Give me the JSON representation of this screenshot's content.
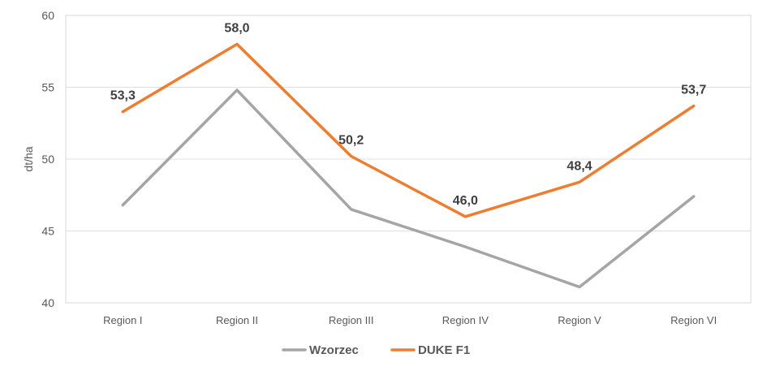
{
  "chart_data": {
    "type": "line",
    "title": "",
    "xlabel": "",
    "ylabel": "dt/ha",
    "categories": [
      "Region I",
      "Region II",
      "Region III",
      "Region IV",
      "Region V",
      "Region VI"
    ],
    "yticks": [
      "40",
      "45",
      "50",
      "55",
      "60"
    ],
    "ylim": [
      40,
      60
    ],
    "grid": true,
    "legend": "bottom",
    "series": [
      {
        "name": "Wzorzec",
        "color": "#a5a5a5",
        "values": [
          46.8,
          54.8,
          46.5,
          43.9,
          41.1,
          47.4
        ],
        "labels": []
      },
      {
        "name": "DUKE F1",
        "color": "#ed7d31",
        "values": [
          53.3,
          58.0,
          50.2,
          46.0,
          48.4,
          53.7
        ],
        "labels": [
          "53,3",
          "58,0",
          "50,2",
          "46,0",
          "48,4",
          "53,7"
        ]
      }
    ]
  }
}
